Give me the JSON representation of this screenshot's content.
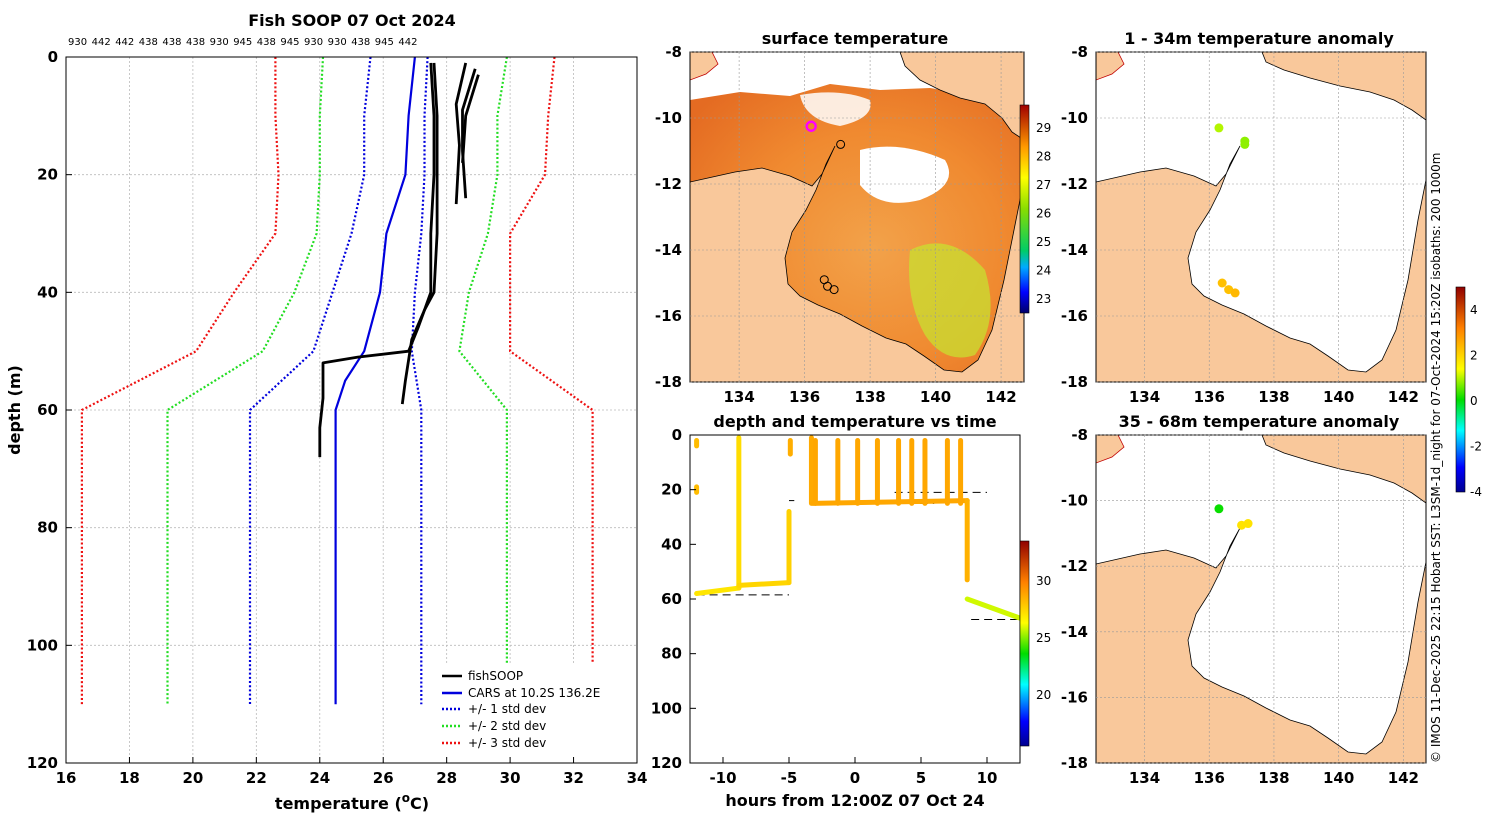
{
  "profile_plot": {
    "title": "Fish SOOP 07 Oct 2024",
    "top_labels": [
      "930",
      "442",
      "442",
      "438",
      "438",
      "438",
      "930",
      "945",
      "438",
      "945",
      "930",
      "930",
      "438",
      "945",
      "442"
    ],
    "xlabel_main": "temperature (",
    "xlabel_sup": "o",
    "xlabel_end": "C)",
    "ylabel": "depth (m)",
    "legend": [
      "fishSOOP",
      "CARS at 10.2S 136.2E",
      "+/- 1 std dev",
      "+/- 2 std dev",
      "+/- 3 std dev"
    ]
  },
  "map_titles": {
    "sst": "surface temperature",
    "anom1": "1 - 34m temperature anomaly",
    "anom2": "35 - 68m temperature anomaly"
  },
  "time_plot": {
    "title": "depth and temperature vs time",
    "xlabel": "hours from 12:00Z 07 Oct 24"
  },
  "colorbars": {
    "sst_ticks": [
      "29",
      "28",
      "27",
      "26",
      "25",
      "24",
      "23"
    ],
    "anom_ticks": [
      "4",
      "2",
      "0",
      "-2",
      "-4"
    ],
    "time_ticks": [
      "30",
      "25",
      "20"
    ]
  },
  "side_caption": "© IMOS 11-Dec-2025 22:15 Hobart SST: L3SM-1d_night for 07-Oct-2024 15:20Z isobaths: 200  1000m",
  "colors": {
    "cars": "#0000dd",
    "std1": "#0000dd",
    "std2": "#22dd22",
    "std3": "#ee1111",
    "land": "#f9c89b",
    "fish": "#000000"
  },
  "chart_data": [
    {
      "type": "line",
      "name": "temperature depth profile",
      "xlabel": "temperature (oC)",
      "ylabel": "depth (m)",
      "xlim": [
        16,
        34
      ],
      "ylim": [
        0,
        120
      ],
      "xticks": [
        "16",
        "18",
        "20",
        "22",
        "24",
        "26",
        "28",
        "30",
        "32",
        "34"
      ],
      "yticks": [
        "0",
        "20",
        "40",
        "60",
        "80",
        "100",
        "120"
      ],
      "series": [
        {
          "name": "CARS at 10.2S 136.2E",
          "style": "solid",
          "color": "cars",
          "points": [
            [
              27.0,
              0
            ],
            [
              26.8,
              10
            ],
            [
              26.7,
              20
            ],
            [
              26.1,
              30
            ],
            [
              25.9,
              40
            ],
            [
              25.4,
              50
            ],
            [
              24.8,
              55
            ],
            [
              24.5,
              60
            ],
            [
              24.5,
              110
            ]
          ]
        },
        {
          "name": "+1 std dev",
          "style": "dotted",
          "color": "std1",
          "points": [
            [
              27.4,
              0
            ],
            [
              27.3,
              10
            ],
            [
              27.3,
              20
            ],
            [
              27.2,
              30
            ],
            [
              27.0,
              40
            ],
            [
              26.9,
              50
            ],
            [
              27.2,
              60
            ],
            [
              27.2,
              110
            ]
          ]
        },
        {
          "name": "-1 std dev",
          "style": "dotted",
          "color": "std1",
          "points": [
            [
              25.6,
              0
            ],
            [
              25.4,
              10
            ],
            [
              25.4,
              20
            ],
            [
              25.0,
              30
            ],
            [
              24.4,
              40
            ],
            [
              23.8,
              50
            ],
            [
              21.8,
              60
            ],
            [
              21.8,
              110
            ]
          ]
        },
        {
          "name": "+2 std dev",
          "style": "dotted",
          "color": "std2",
          "points": [
            [
              29.9,
              0
            ],
            [
              29.6,
              10
            ],
            [
              29.6,
              20
            ],
            [
              29.3,
              30
            ],
            [
              28.7,
              40
            ],
            [
              28.4,
              50
            ],
            [
              29.9,
              60
            ],
            [
              29.9,
              110
            ]
          ]
        },
        {
          "name": "-2 std dev",
          "style": "dotted",
          "color": "std2",
          "points": [
            [
              24.1,
              0
            ],
            [
              24.0,
              10
            ],
            [
              24.0,
              20
            ],
            [
              23.9,
              30
            ],
            [
              23.2,
              40
            ],
            [
              22.2,
              50
            ],
            [
              19.2,
              60
            ],
            [
              19.2,
              110
            ]
          ]
        },
        {
          "name": "+3 std dev",
          "style": "dotted",
          "color": "std3",
          "points": [
            [
              31.4,
              0
            ],
            [
              31.2,
              10
            ],
            [
              31.1,
              20
            ],
            [
              30.0,
              30
            ],
            [
              30.0,
              40
            ],
            [
              30.0,
              50
            ],
            [
              32.6,
              60
            ],
            [
              32.6,
              110
            ]
          ]
        },
        {
          "name": "-3 std dev",
          "style": "dotted",
          "color": "std3",
          "points": [
            [
              22.6,
              0
            ],
            [
              22.6,
              10
            ],
            [
              22.7,
              20
            ],
            [
              22.6,
              30
            ],
            [
              21.3,
              40
            ],
            [
              20.1,
              50
            ],
            [
              16.5,
              60
            ],
            [
              16.5,
              110
            ]
          ]
        },
        {
          "name": "fishSOOP cast 1",
          "style": "solid",
          "color": "fish",
          "points": [
            [
              27.5,
              1
            ],
            [
              27.6,
              10
            ],
            [
              27.6,
              20
            ],
            [
              27.5,
              30
            ],
            [
              27.5,
              40
            ],
            [
              27.3,
              43
            ],
            [
              27.1,
              46
            ],
            [
              26.8,
              50
            ],
            [
              25.2,
              51
            ],
            [
              24.1,
              52
            ],
            [
              24.1,
              58
            ],
            [
              24.0,
              63
            ],
            [
              24.0,
              68
            ]
          ]
        },
        {
          "name": "fishSOOP cast 2",
          "style": "solid",
          "color": "fish",
          "points": [
            [
              27.6,
              1
            ],
            [
              27.7,
              10
            ],
            [
              27.7,
              20
            ],
            [
              27.7,
              30
            ],
            [
              27.6,
              40
            ],
            [
              27.3,
              43
            ],
            [
              26.9,
              48
            ],
            [
              26.7,
              55
            ],
            [
              26.6,
              59
            ]
          ]
        },
        {
          "name": "fishSOOP cast 3",
          "style": "solid",
          "color": "fish",
          "points": [
            [
              28.6,
              1
            ],
            [
              28.3,
              8
            ],
            [
              28.4,
              15
            ],
            [
              28.3,
              25
            ]
          ]
        },
        {
          "name": "fishSOOP cast 4",
          "style": "solid",
          "color": "fish",
          "points": [
            [
              28.9,
              2
            ],
            [
              28.5,
              9
            ],
            [
              28.5,
              16
            ],
            [
              28.6,
              24
            ]
          ]
        },
        {
          "name": "fishSOOP cast 5",
          "style": "solid",
          "color": "fish",
          "points": [
            [
              29.0,
              3
            ],
            [
              28.6,
              10
            ],
            [
              28.5,
              18
            ]
          ]
        }
      ]
    },
    {
      "type": "heatmap",
      "name": "surface temperature map",
      "xlim": [
        132.5,
        142.7
      ],
      "ylim": [
        -18,
        -8
      ],
      "xticks": [
        "134",
        "136",
        "138",
        "140",
        "142"
      ],
      "yticks": [
        "-8",
        "-10",
        "-12",
        "-14",
        "-16",
        "-18"
      ],
      "colorbar_range": [
        22.5,
        29.8
      ],
      "markers": [
        {
          "lon": 136.2,
          "lat": -10.25,
          "kind": "current"
        },
        {
          "lon": 137.1,
          "lat": -10.8,
          "kind": "station"
        },
        {
          "lon": 136.6,
          "lat": -14.9,
          "kind": "station"
        },
        {
          "lon": 136.7,
          "lat": -15.1,
          "kind": "station"
        },
        {
          "lon": 136.9,
          "lat": -15.2,
          "kind": "station"
        }
      ]
    },
    {
      "type": "scatter",
      "name": "1 - 34m temperature anomaly",
      "xlim": [
        132.5,
        142.7
      ],
      "ylim": [
        -18,
        -8
      ],
      "colorbar_range": [
        -4,
        5
      ],
      "points": [
        {
          "lon": 136.3,
          "lat": -10.3,
          "value": 1.0
        },
        {
          "lon": 137.1,
          "lat": -10.7,
          "value": 0.8
        },
        {
          "lon": 137.1,
          "lat": -10.8,
          "value": 0.8
        },
        {
          "lon": 136.4,
          "lat": -15.0,
          "value": 2.3
        },
        {
          "lon": 136.6,
          "lat": -15.2,
          "value": 2.3
        },
        {
          "lon": 136.8,
          "lat": -15.3,
          "value": 2.4
        }
      ]
    },
    {
      "type": "scatter",
      "name": "35 - 68m temperature anomaly",
      "xlim": [
        132.5,
        142.7
      ],
      "ylim": [
        -18,
        -8
      ],
      "points": [
        {
          "lon": 136.3,
          "lat": -10.25,
          "value": 0.1
        },
        {
          "lon": 137.0,
          "lat": -10.75,
          "value": 1.8
        },
        {
          "lon": 137.2,
          "lat": -10.7,
          "value": 1.8
        }
      ]
    },
    {
      "type": "scatter",
      "name": "depth and temperature vs time",
      "xlabel": "hours from 12:00Z 07 Oct 24",
      "xlim": [
        -12.5,
        12.5
      ],
      "ylim": [
        0,
        120
      ],
      "xticks": [
        "-10",
        "-5",
        "0",
        "5",
        "10"
      ],
      "yticks": [
        "0",
        "20",
        "40",
        "60",
        "80",
        "100",
        "120"
      ],
      "colorbar_range": [
        15.5,
        33.5
      ],
      "segments": [
        {
          "t0": -12.0,
          "t1": -12.0,
          "d0": 2,
          "d1": 4,
          "temp": 28.2
        },
        {
          "t0": -12.0,
          "t1": -12.0,
          "d0": 19,
          "d1": 21,
          "temp": 28.2
        },
        {
          "t0": -12.0,
          "t1": -8.8,
          "d0": 58,
          "d1": 56,
          "temp": 27.0
        },
        {
          "t0": -8.8,
          "t1": -8.8,
          "d0": 56,
          "d1": 1,
          "temp": 27.3
        },
        {
          "t0": -8.8,
          "t1": -5.0,
          "d0": 55,
          "d1": 54,
          "temp": 27.5
        },
        {
          "t0": -5.0,
          "t1": -5.0,
          "d0": 54,
          "d1": 28,
          "temp": 27.6
        },
        {
          "t0": -4.9,
          "t1": -4.9,
          "d0": 2,
          "d1": 7,
          "temp": 28.6
        },
        {
          "t0": -3.3,
          "t1": -3.3,
          "d0": 1,
          "d1": 25,
          "temp": 28.7
        },
        {
          "t0": -3.2,
          "t1": 8.5,
          "d0": 25,
          "d1": 24,
          "temp": 28.8
        },
        {
          "t0": 8.5,
          "t1": 8.5,
          "d0": 24,
          "d1": 53,
          "temp": 28.5
        },
        {
          "t0": 8.5,
          "t1": 12.5,
          "d0": 60,
          "d1": 67,
          "temp": 25.8
        }
      ],
      "cars_depth_markers": [
        {
          "t0": -12.0,
          "t1": -5.0,
          "depth": 58.5
        },
        {
          "t0": -5.0,
          "t1": -4.6,
          "depth": 24
        },
        {
          "t0": -1.0,
          "t1": 6.0,
          "depth": 25
        },
        {
          "t0": 3.0,
          "t1": 10.0,
          "depth": 21
        },
        {
          "t0": 8.8,
          "t1": 12.5,
          "depth": 67.5
        }
      ]
    }
  ]
}
